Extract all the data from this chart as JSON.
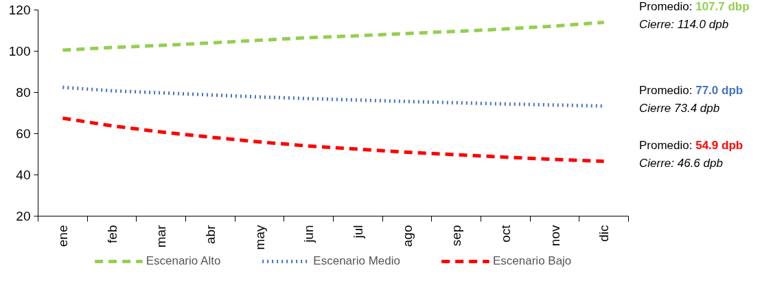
{
  "chart_data": {
    "type": "line",
    "categories": [
      "ene",
      "feb",
      "mar",
      "abr",
      "may",
      "jun",
      "jul",
      "ago",
      "sep",
      "oct",
      "nov",
      "dic"
    ],
    "series": [
      {
        "name": "Escenario Alto",
        "color": "#92d050",
        "line_style": "dashed",
        "values": [
          100.5,
          101.8,
          102.8,
          104.0,
          105.3,
          106.6,
          107.5,
          108.6,
          109.6,
          110.8,
          112.2,
          114.0
        ]
      },
      {
        "name": "Escenario Medio",
        "color": "#4472c4",
        "line_style": "dotted",
        "values": [
          82.5,
          80.8,
          79.8,
          78.8,
          77.8,
          77.0,
          76.3,
          75.6,
          75.0,
          74.4,
          73.9,
          73.4
        ]
      },
      {
        "name": "Escenario Bajo",
        "color": "#ff0000",
        "line_style": "dashed",
        "values": [
          67.5,
          63.8,
          60.8,
          58.3,
          56.0,
          54.0,
          52.5,
          51.0,
          49.8,
          48.6,
          47.5,
          46.6
        ]
      }
    ],
    "annotations": [
      "Promedio: 107.7 dbp",
      "Cierre: 114.0 dpb",
      "Promedio: 77.0 dpb",
      "Cierre 73.4 dpb",
      "Promedio: 54.9 dpb",
      "Cierre: 46.6 dpb"
    ],
    "ylim": [
      20,
      120
    ],
    "yticks": [
      20,
      40,
      60,
      80,
      100,
      120
    ],
    "grid": false,
    "legend": "bottom",
    "marker": "none"
  }
}
